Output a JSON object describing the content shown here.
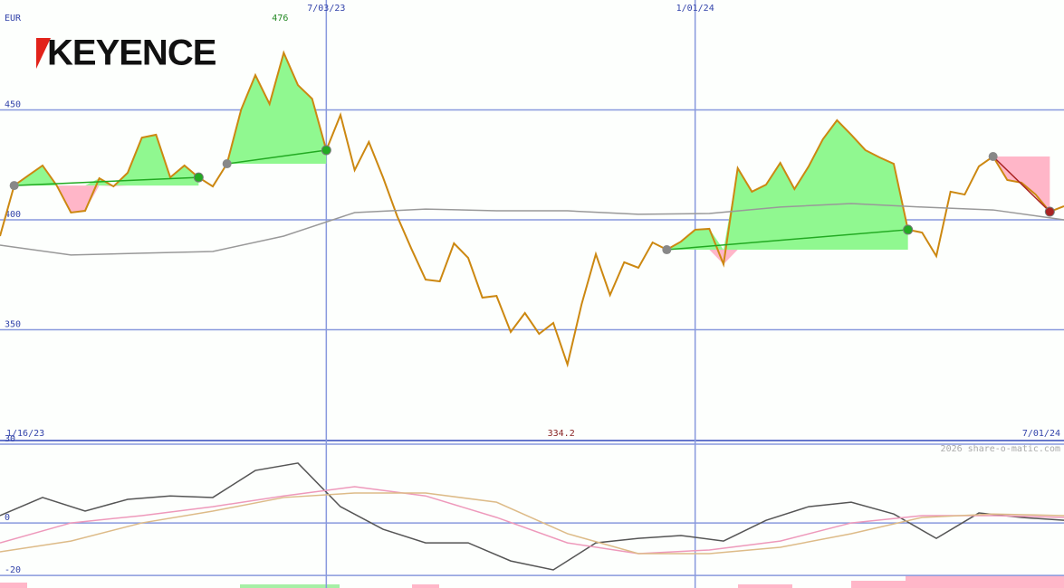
{
  "chart_data": [
    {
      "type": "line",
      "logo": "KEYENCE",
      "currency": "EUR",
      "high": 476,
      "low": 334.2,
      "x_start_label": "1/16/23",
      "x_end_label": "7/01/24",
      "xlim": [
        0,
        75
      ],
      "xticks": [
        {
          "value": 23,
          "label": "7/03/23"
        },
        {
          "value": 49,
          "label": "1/01/24"
        }
      ],
      "ylim": [
        300,
        500
      ],
      "yticks": [
        350,
        400,
        450
      ],
      "grid": true,
      "series": [
        {
          "color": "#cc8811",
          "values": [
            392.6,
            415.6,
            420.2,
            424.7,
            415.6,
            403.3,
            404.1,
            418.9,
            415.2,
            421.4,
            437.4,
            438.7,
            419.3,
            424.7,
            419.3,
            415.2,
            425.5,
            450.2,
            465.8,
            452.7,
            476,
            461.3,
            455.1,
            431.7,
            447.7,
            422.6,
            435.4,
            419.3,
            401.6,
            386.8,
            372.8,
            372.0,
            389.3,
            382.7,
            364.6,
            365.4,
            349.0,
            357.6,
            348.1,
            353.1,
            334.2,
            361.7,
            384.4,
            365.8,
            380.7,
            378.2,
            389.7,
            386.4,
            390.1,
            395.5,
            395.9,
            379.8,
            423.5,
            412.8,
            416.0,
            425.9,
            414.0,
            424.3,
            436.6,
            445.3,
            438.7,
            431.7,
            428.4,
            425.5,
            395.5,
            394.2,
            383.5,
            412.8,
            411.5,
            424.3,
            428.8,
            418.1,
            416.9,
            411.5,
            403.7,
            406.2
          ]
        },
        {
          "color": "#999999",
          "x": [
            0,
            5,
            10,
            15,
            20,
            25,
            30,
            35,
            40,
            45,
            50,
            55,
            60,
            65,
            70,
            75
          ],
          "values": [
            388.5,
            384.0,
            384.8,
            385.6,
            392.6,
            403.3,
            404.9,
            404.1,
            404.1,
            402.5,
            402.9,
            405.8,
            407.4,
            405.8,
            404.5,
            400.0
          ]
        }
      ],
      "signals": [
        {
          "start": 1,
          "end": 14,
          "color": "#22aa22"
        },
        {
          "start": 16,
          "end": 23,
          "color": "#22aa22"
        },
        {
          "start": 47,
          "end": 64,
          "color": "#22aa22"
        },
        {
          "start": 70,
          "end": 74,
          "color": "#aa2222"
        }
      ]
    },
    {
      "type": "line",
      "watermark": "2026 share-o-matic.com",
      "xlim": [
        0,
        75
      ],
      "ylim": [
        -24.8,
        31.4
      ],
      "yticks": [
        -20,
        0,
        30
      ],
      "grid": true,
      "series": [
        {
          "color": "#555555",
          "x": [
            0,
            3,
            6,
            9,
            12,
            15,
            18,
            21,
            24,
            27,
            30,
            33,
            36,
            39,
            42,
            45,
            48,
            51,
            54,
            57,
            60,
            63,
            66,
            69,
            72,
            75
          ],
          "values": [
            2.8,
            9.7,
            4.5,
            9.0,
            10.3,
            9.7,
            20.0,
            22.8,
            6.2,
            -2.4,
            -7.6,
            -7.6,
            -14.5,
            -17.9,
            -7.6,
            -5.9,
            -4.8,
            -6.9,
            1.0,
            6.2,
            7.9,
            3.4,
            -5.9,
            3.8,
            2.1,
            1.0
          ]
        },
        {
          "color": "#ee99bb",
          "x": [
            0,
            5,
            10,
            15,
            20,
            25,
            30,
            35,
            40,
            45,
            50,
            55,
            60,
            65,
            70,
            75
          ],
          "values": [
            -7.6,
            0,
            2.8,
            6.2,
            10.3,
            13.8,
            10.3,
            2.1,
            -7.6,
            -11.7,
            -10.3,
            -6.9,
            0,
            2.8,
            2.8,
            2.1
          ]
        },
        {
          "color": "#ddbb88",
          "x": [
            0,
            5,
            10,
            15,
            20,
            25,
            30,
            35,
            40,
            45,
            50,
            55,
            60,
            65,
            70,
            75
          ],
          "values": [
            -11.0,
            -6.9,
            0,
            4.5,
            9.7,
            11.4,
            11.4,
            7.9,
            -4.1,
            -11.7,
            -11.7,
            -9.3,
            -4.1,
            2.1,
            3.4,
            2.8
          ]
        }
      ]
    }
  ]
}
